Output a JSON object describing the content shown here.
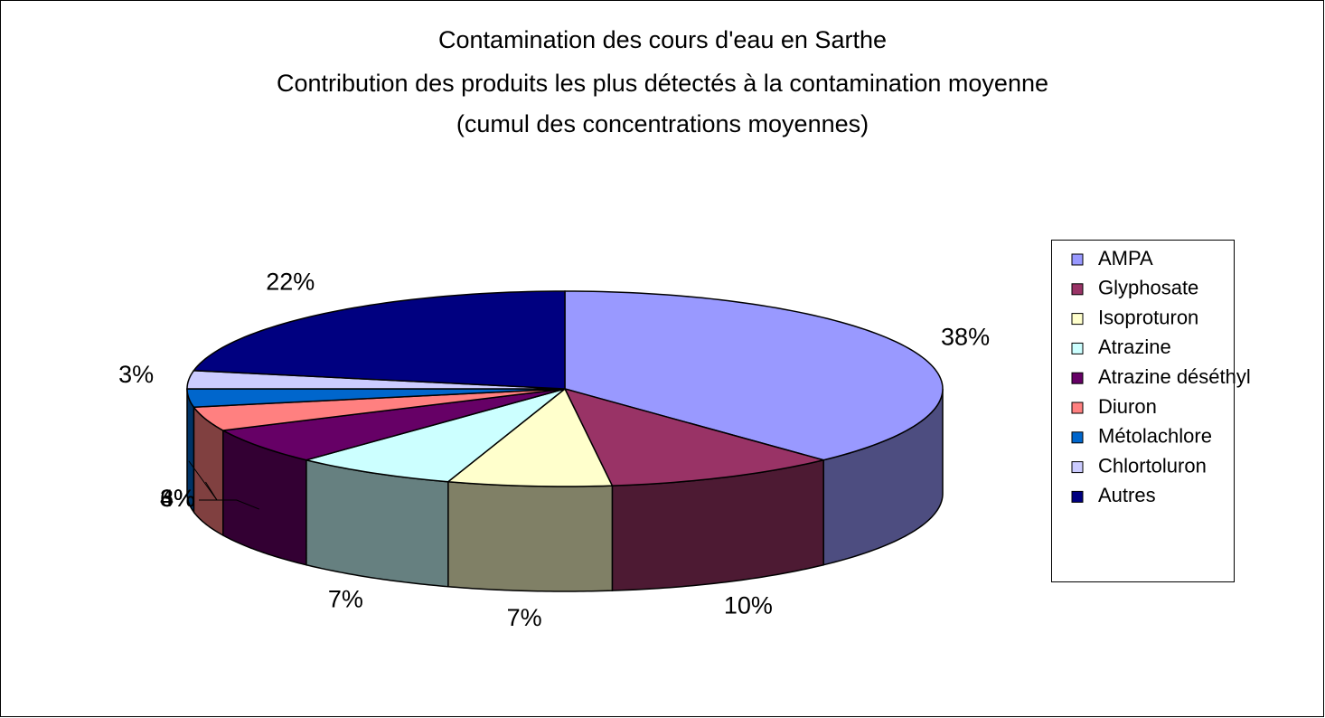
{
  "chart_data": {
    "type": "pie3d",
    "title": [
      "Contamination des cours d'eau en Sarthe",
      "Contribution des produits les plus détectés à la contamination moyenne",
      "(cumul des concentrations moyennes)"
    ],
    "categories": [
      "AMPA",
      "Glyphosate",
      "Isoproturon",
      "Atrazine",
      "Atrazine déséthyl",
      "Diuron",
      "Métolachlore",
      "Chlortoluron",
      "Autres"
    ],
    "values": [
      38,
      10,
      7,
      7,
      6,
      4,
      3,
      3,
      22
    ],
    "value_labels": [
      "38%",
      "10%",
      "7%",
      "7%",
      "6%",
      "4%",
      "3%",
      "3%",
      "22%"
    ],
    "colors": [
      "#9999ff",
      "#993366",
      "#ffffcc",
      "#ccffff",
      "#660066",
      "#ff8080",
      "#0066cc",
      "#ccccff",
      "#000080"
    ],
    "legend": "right"
  }
}
